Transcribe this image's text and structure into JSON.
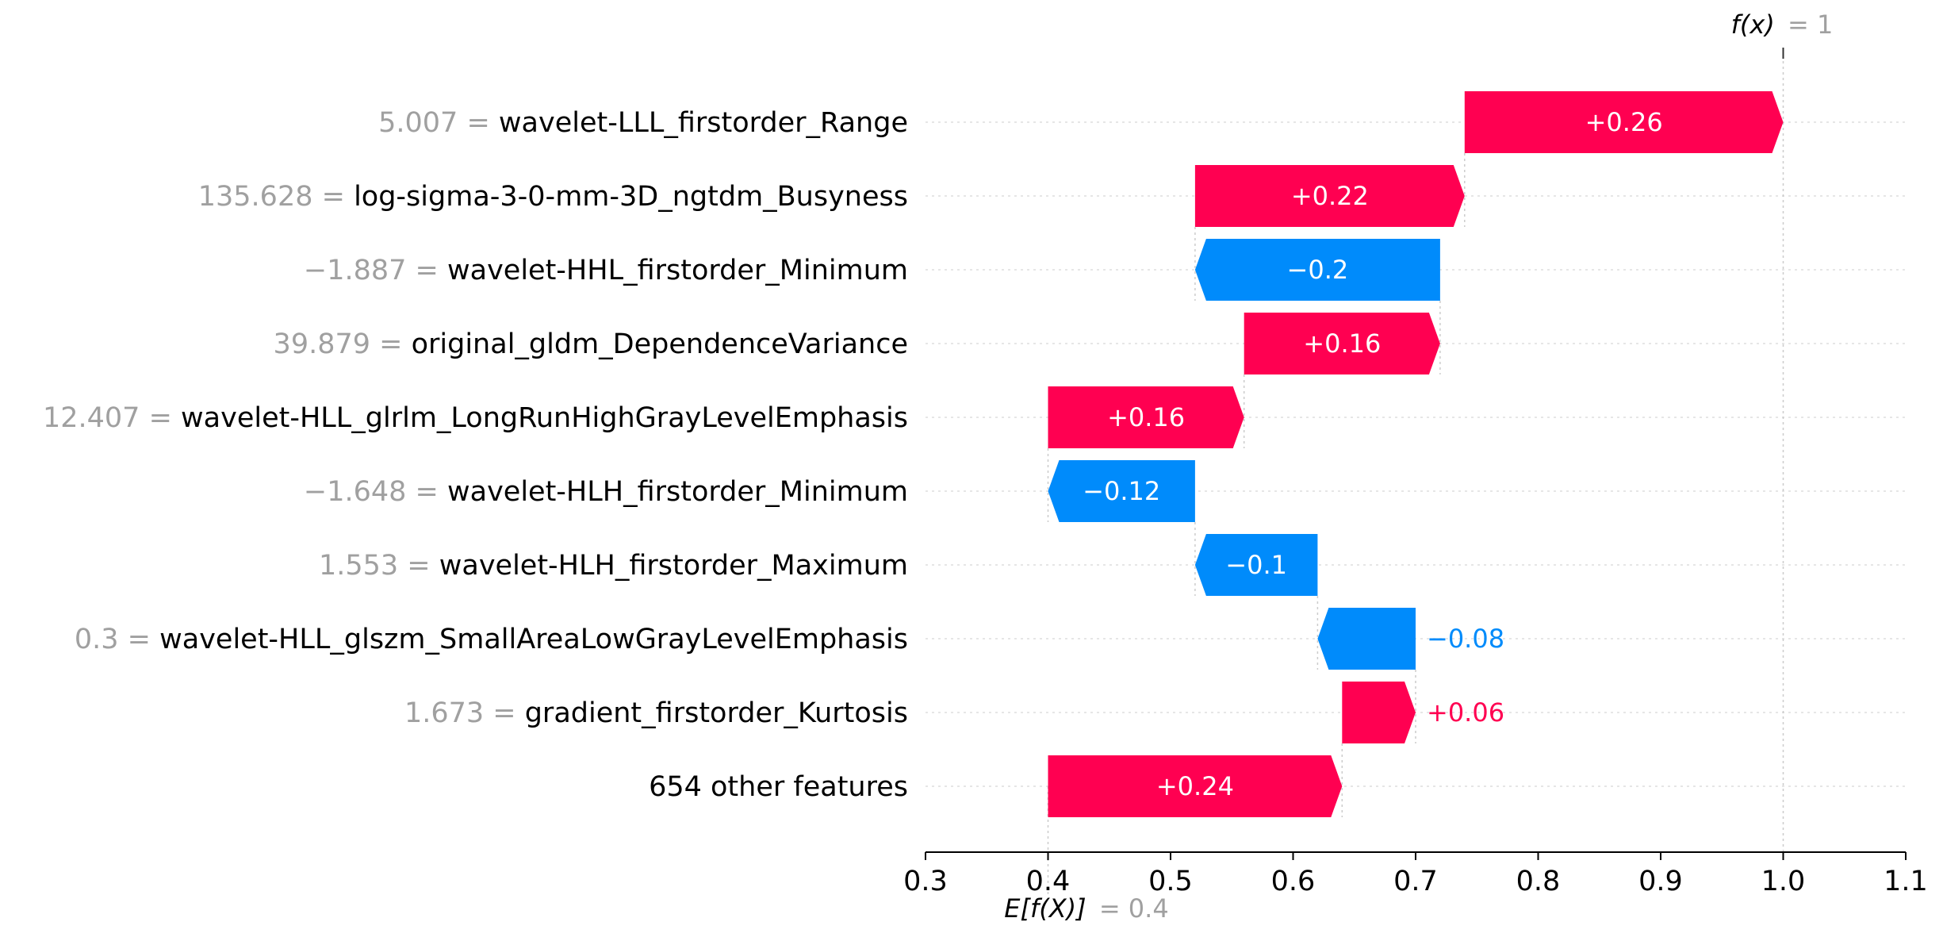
{
  "chart_data": {
    "type": "waterfall",
    "base_value": 0.4,
    "base_label_prefix": "E[f(X)]",
    "base_label_value": "= 0.4",
    "output_value": 1,
    "output_label_prefix": "f(x)",
    "output_label_value": "= 1",
    "xlim": [
      0.3,
      1.1
    ],
    "xticks": [
      "0.3",
      "0.4",
      "0.5",
      "0.6",
      "0.7",
      "0.8",
      "0.9",
      "1.0",
      "1.1"
    ],
    "rows": [
      {
        "value_text": "5.007 =",
        "feature": "wavelet-LLL_firstorder_Range",
        "contribution": 0.26,
        "label": "+0.26"
      },
      {
        "value_text": "135.628 =",
        "feature": "log-sigma-3-0-mm-3D_ngtdm_Busyness",
        "contribution": 0.22,
        "label": "+0.22"
      },
      {
        "value_text": "−1.887 =",
        "feature": "wavelet-HHL_firstorder_Minimum",
        "contribution": -0.2,
        "label": "−0.2"
      },
      {
        "value_text": "39.879 =",
        "feature": "original_gldm_DependenceVariance",
        "contribution": 0.16,
        "label": "+0.16"
      },
      {
        "value_text": "12.407 =",
        "feature": "wavelet-HLL_glrlm_LongRunHighGrayLevelEmphasis",
        "contribution": 0.16,
        "label": "+0.16"
      },
      {
        "value_text": "−1.648 =",
        "feature": "wavelet-HLH_firstorder_Minimum",
        "contribution": -0.12,
        "label": "−0.12"
      },
      {
        "value_text": "1.553 =",
        "feature": "wavelet-HLH_firstorder_Maximum",
        "contribution": -0.1,
        "label": "−0.1"
      },
      {
        "value_text": "0.3 =",
        "feature": "wavelet-HLL_glszm_SmallAreaLowGrayLevelEmphasis",
        "contribution": -0.08,
        "label": "−0.08"
      },
      {
        "value_text": "1.673 =",
        "feature": "gradient_firstorder_Kurtosis",
        "contribution": 0.06,
        "label": "+0.06"
      },
      {
        "value_text": "",
        "feature": "654 other features",
        "contribution": 0.24,
        "label": "+0.24"
      }
    ],
    "colors": {
      "positive": "#ff0051",
      "negative": "#008bfb",
      "value_gray": "#a0a0a0",
      "text": "#000000",
      "grid": "#cccccc"
    }
  }
}
